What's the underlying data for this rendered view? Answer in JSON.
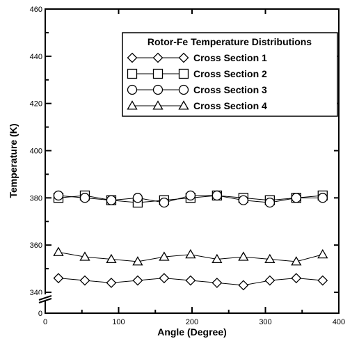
{
  "chart_data": {
    "type": "line",
    "xlabel": "Angle (Degree)",
    "ylabel": "Temperature (K)",
    "xlim": [
      0,
      400
    ],
    "ylim": [
      340,
      460
    ],
    "x_break_label": "0",
    "x_ticks": [
      0,
      100,
      200,
      300,
      400
    ],
    "y_ticks": [
      340,
      360,
      380,
      400,
      420,
      440,
      460
    ],
    "y_axis_break": true,
    "y_break_label": "0",
    "legend": {
      "title": "Rotor-Fe Temperature Distributions",
      "position": "top-right"
    },
    "grid": false,
    "color": "#000000",
    "x": [
      18,
      54,
      90,
      126,
      162,
      198,
      234,
      270,
      306,
      342,
      378
    ],
    "series": [
      {
        "name": "Cross Section 1",
        "marker": "diamond",
        "values": [
          346,
          345,
          344,
          345,
          346,
          345,
          344,
          343,
          345,
          346,
          345
        ]
      },
      {
        "name": "Cross Section 2",
        "marker": "square",
        "values": [
          380,
          381,
          379,
          378,
          379,
          380,
          381,
          380,
          379,
          380,
          381
        ]
      },
      {
        "name": "Cross Section 3",
        "marker": "circle",
        "values": [
          381,
          380,
          379,
          380,
          378,
          381,
          381,
          379,
          378,
          380,
          380
        ]
      },
      {
        "name": "Cross Section 4",
        "marker": "triangle",
        "values": [
          357,
          355,
          354,
          353,
          355,
          356,
          354,
          355,
          354,
          353,
          356
        ]
      }
    ]
  }
}
